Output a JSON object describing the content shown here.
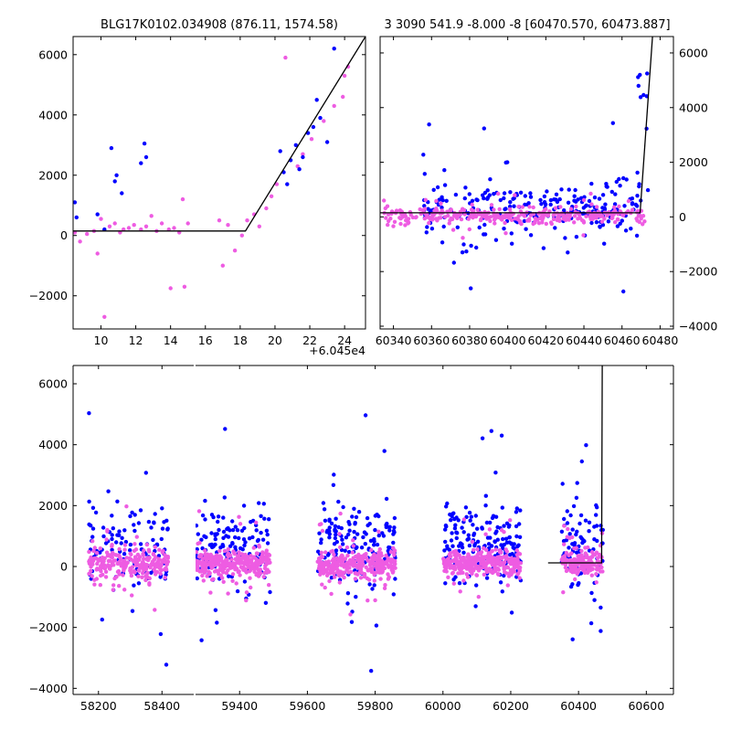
{
  "colors": {
    "blue": "#0000ff",
    "pink": "#ee5ce2",
    "line": "#000000",
    "axes": "#000000",
    "background": "#ffffff"
  },
  "chart_data": [
    {
      "type": "scatter",
      "title": "BLG17K0102.034908 (876.11, 1574.58)",
      "xlabel": "",
      "ylabel": "",
      "offset_label": "+6.045e4",
      "xlim": [
        8.4,
        25.2
      ],
      "ylim": [
        -3100,
        6600
      ],
      "x_ticks": [
        10,
        12,
        14,
        16,
        18,
        20,
        22,
        24
      ],
      "y_ticks": [
        -2000,
        0,
        2000,
        4000,
        6000
      ],
      "y_axis_side": "left",
      "grid": false,
      "model_line": {
        "x": [
          8.4,
          18.3,
          25.2
        ],
        "y": [
          150,
          150,
          6600
        ]
      },
      "series": [
        {
          "color": "pink",
          "points": [
            [
              8.5,
              100
            ],
            [
              8.8,
              -200
            ],
            [
              9.2,
              50
            ],
            [
              9.6,
              150
            ],
            [
              9.8,
              -600
            ],
            [
              10.0,
              550
            ],
            [
              10.2,
              -2700
            ],
            [
              10.5,
              300
            ],
            [
              10.8,
              400
            ],
            [
              11.1,
              100
            ],
            [
              11.3,
              200
            ],
            [
              11.6,
              250
            ],
            [
              11.9,
              350
            ],
            [
              12.3,
              200
            ],
            [
              12.6,
              300
            ],
            [
              12.9,
              650
            ],
            [
              13.2,
              150
            ],
            [
              13.5,
              400
            ],
            [
              13.9,
              200
            ],
            [
              14.2,
              250
            ],
            [
              14.5,
              100
            ],
            [
              14.7,
              1200
            ],
            [
              15.0,
              400
            ],
            [
              16.8,
              500
            ],
            [
              17.0,
              -1000
            ],
            [
              17.3,
              350
            ],
            [
              17.7,
              -500
            ],
            [
              18.1,
              0
            ],
            [
              18.4,
              500
            ],
            [
              18.8,
              700
            ],
            [
              19.1,
              300
            ],
            [
              19.5,
              900
            ],
            [
              19.8,
              1300
            ],
            [
              20.1,
              1700
            ],
            [
              20.6,
              5900
            ],
            [
              21.3,
              2300
            ],
            [
              21.6,
              2700
            ],
            [
              22.1,
              3200
            ],
            [
              22.8,
              3800
            ],
            [
              23.4,
              4300
            ],
            [
              23.9,
              4600
            ],
            [
              24.0,
              5300
            ],
            [
              24.2,
              5600
            ],
            [
              14.0,
              -1750
            ],
            [
              14.8,
              -1700
            ]
          ]
        },
        {
          "color": "blue",
          "points": [
            [
              8.5,
              1100
            ],
            [
              8.6,
              600
            ],
            [
              9.8,
              700
            ],
            [
              10.2,
              200
            ],
            [
              10.6,
              2900
            ],
            [
              10.8,
              1800
            ],
            [
              10.9,
              2000
            ],
            [
              11.2,
              1400
            ],
            [
              12.3,
              2400
            ],
            [
              12.5,
              3050
            ],
            [
              12.6,
              2600
            ],
            [
              20.3,
              2800
            ],
            [
              20.5,
              2100
            ],
            [
              20.7,
              1700
            ],
            [
              20.9,
              2500
            ],
            [
              21.2,
              3000
            ],
            [
              21.4,
              2200
            ],
            [
              21.6,
              2600
            ],
            [
              21.9,
              3400
            ],
            [
              22.2,
              3600
            ],
            [
              22.4,
              4500
            ],
            [
              22.6,
              3900
            ],
            [
              23.4,
              6200
            ],
            [
              23.0,
              3100
            ]
          ]
        }
      ]
    },
    {
      "type": "scatter",
      "title": "3 3090 541.9 -8.000 -8 [60470.570, 60473.887]",
      "xlabel": "",
      "ylabel": "",
      "xlim": [
        60333,
        60487
      ],
      "ylim": [
        -4100,
        6600
      ],
      "x_ticks": [
        60340,
        60360,
        60380,
        60400,
        60420,
        60440,
        60460,
        60480
      ],
      "y_ticks": [
        -4000,
        -2000,
        0,
        2000,
        4000,
        6000
      ],
      "y_axis_side": "right",
      "grid": false,
      "model_line": {
        "x": [
          60333,
          60469.5,
          60476
        ],
        "y": [
          150,
          150,
          6600
        ]
      },
      "series": [
        {
          "color": "blue",
          "cluster": {
            "x_range": [
              60355,
              60470
            ],
            "center": 300,
            "spread": 900,
            "count": 240,
            "seed": 11
          }
        },
        {
          "color": "pink",
          "cluster": {
            "x_range": [
              60335,
              60472
            ],
            "center": 50,
            "spread": 250,
            "count": 320,
            "seed": 23
          }
        }
      ]
    },
    {
      "type": "scatter",
      "title": "",
      "xlabel": "",
      "ylabel": "",
      "x_ticks": [
        58200,
        58400,
        59400,
        59600,
        59800,
        60000,
        60200,
        60400,
        60600
      ],
      "y_ticks": [
        -4000,
        -2000,
        0,
        2000,
        4000,
        6000
      ],
      "ylim": [
        -4200,
        6600
      ],
      "y_axis_side": "left",
      "grid": false,
      "broken_x_axis": [
        {
          "xlim": [
            58120,
            58500
          ]
        },
        {
          "xlim": [
            59270,
            60680
          ]
        }
      ],
      "model_line": {
        "x": [
          60310,
          60468,
          60470
        ],
        "y": [
          120,
          120,
          6600
        ]
      },
      "seasons": [
        {
          "x_range": [
            58170,
            58420
          ],
          "seed": 1,
          "blue_count": 110,
          "pink_count": 260
        },
        {
          "x_range": [
            59270,
            59490
          ],
          "seed": 2,
          "blue_count": 140,
          "pink_count": 300
        },
        {
          "x_range": [
            59630,
            59860
          ],
          "seed": 3,
          "blue_count": 160,
          "pink_count": 300
        },
        {
          "x_range": [
            60000,
            60230
          ],
          "seed": 4,
          "blue_count": 170,
          "pink_count": 300
        },
        {
          "x_range": [
            60350,
            60472
          ],
          "seed": 5,
          "blue_count": 90,
          "pink_count": 160
        }
      ]
    }
  ]
}
